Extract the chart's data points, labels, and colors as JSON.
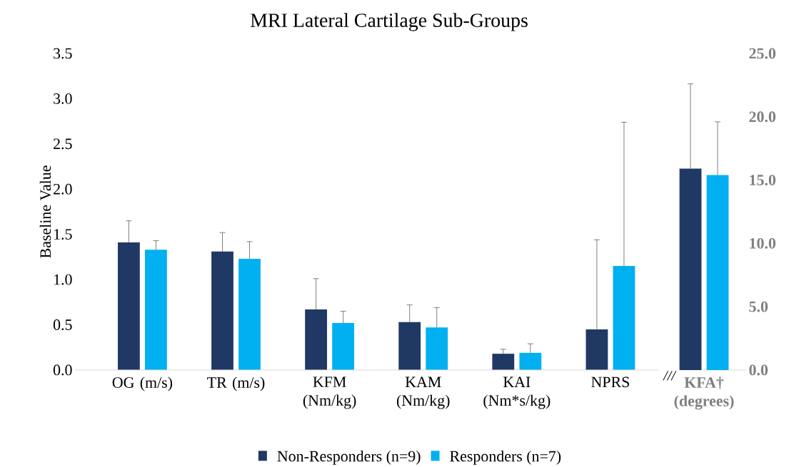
{
  "chart_data": {
    "type": "bar",
    "title": "MRI Lateral Cartilage Sub-Groups",
    "ylabel": "Baseline Value",
    "categories": [
      "OG (m/s)",
      "TR (m/s)",
      "KFM (Nm/kg)",
      "KAM (Nm/kg)",
      "KAI (Nm*s/kg)",
      "NPRS",
      "KFA† (degrees)"
    ],
    "series": [
      {
        "name": "Non-Responders (n=9)",
        "color": "#203864",
        "values": [
          1.41,
          1.31,
          0.67,
          0.53,
          0.18,
          0.45,
          null
        ],
        "errors": [
          0.24,
          0.21,
          0.34,
          0.19,
          0.05,
          0.99,
          null
        ]
      },
      {
        "name": "Responders (n=7)",
        "color": "#00b0f0",
        "values": [
          1.33,
          1.23,
          0.52,
          0.47,
          0.19,
          1.15,
          null
        ],
        "errors": [
          0.1,
          0.19,
          0.13,
          0.22,
          0.1,
          1.59,
          null
        ]
      },
      {
        "color": "#203864",
        "axis": "y2",
        "values": [
          null,
          null,
          null,
          null,
          null,
          null,
          15.9
        ],
        "errors": [
          null,
          null,
          null,
          null,
          null,
          null,
          6.7
        ]
      },
      {
        "color": "#00b0f0",
        "axis": "y2",
        "values": [
          null,
          null,
          null,
          null,
          null,
          null,
          15.4
        ],
        "errors": [
          null,
          null,
          null,
          null,
          null,
          null,
          4.2
        ]
      }
    ],
    "ylim": [
      0,
      3.5
    ],
    "yticks": [
      {
        "value": 0,
        "label": "0.0"
      },
      0.5,
      {
        "value": 1,
        "label": "1.0"
      },
      1.5,
      {
        "value": 2,
        "label": "2.0"
      },
      2.5,
      {
        "value": 3,
        "label": "3.0"
      },
      3.5
    ],
    "y2lim": [
      0,
      25
    ],
    "y2ticks": [
      {
        "value": 0,
        "label": "0.0"
      },
      {
        "value": 5,
        "label": "5.0"
      },
      {
        "value": 10,
        "label": "10.0"
      },
      {
        "value": 15,
        "label": "15.0"
      },
      {
        "value": 20,
        "label": "20.0"
      },
      {
        "value": 25,
        "label": "25.0"
      }
    ],
    "annotations": [
      "///"
    ],
    "legend": "bottom",
    "grid": false
  }
}
